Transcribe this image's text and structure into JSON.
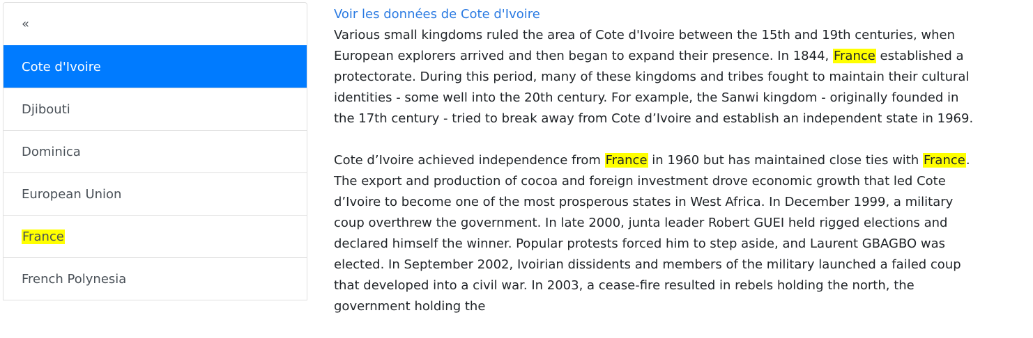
{
  "sidebar": {
    "back_label": "«",
    "items": [
      {
        "label": "Cote d'Ivoire",
        "active": true,
        "highlighted": false
      },
      {
        "label": "Djibouti",
        "active": false,
        "highlighted": false
      },
      {
        "label": "Dominica",
        "active": false,
        "highlighted": false
      },
      {
        "label": "European Union",
        "active": false,
        "highlighted": false
      },
      {
        "label": "France",
        "active": false,
        "highlighted": true
      },
      {
        "label": "French Polynesia",
        "active": false,
        "highlighted": false
      }
    ]
  },
  "content": {
    "link_text": "Voir les données de Cote d'Ivoire",
    "highlight_term": "France",
    "paragraphs": [
      [
        {
          "text": "Various small kingdoms ruled the area of Cote d'Ivoire between the 15th and 19th centuries, when European explorers arrived and then began to expand their presence. In 1844, "
        },
        {
          "text": "France",
          "hl": true
        },
        {
          "text": " established a protectorate. During this period, many of these kingdoms and tribes fought to maintain their cultural identities - some well into the 20th century. For example, the Sanwi kingdom - originally founded in the 17th century - tried to break away from Cote d’Ivoire and establish an independent state in 1969."
        }
      ],
      [
        {
          "text": "Cote d’Ivoire achieved independence from "
        },
        {
          "text": "France",
          "hl": true
        },
        {
          "text": " in 1960 but has maintained close ties with "
        },
        {
          "text": "France",
          "hl": true
        },
        {
          "text": ". The export and production of cocoa and foreign investment drove economic growth that led Cote d’Ivoire to become one of the most prosperous states in West Africa. In December 1999, a military coup overthrew the government. In late 2000, junta leader Robert GUEI held rigged elections and declared himself the winner. Popular protests forced him to step aside, and Laurent GBAGBO was elected. In September 2002, Ivoirian dissidents and members of the military launched a failed coup that developed into a civil war. In 2003, a cease-fire resulted in rebels holding the north, the government holding the"
        }
      ]
    ]
  },
  "colors": {
    "active_bg": "#007bff",
    "highlight": "#ffff00",
    "link": "#2a7ae2"
  }
}
